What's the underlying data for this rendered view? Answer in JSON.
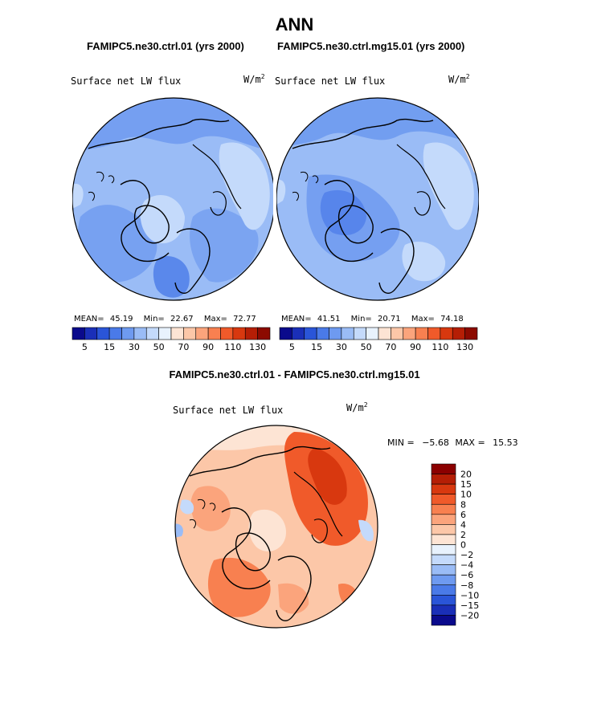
{
  "figure": {
    "title": "ANN",
    "units_base": "W/m",
    "units_exp": "2"
  },
  "panels": [
    {
      "case_title": "FAMIPC5.ne30.ctrl.01 (yrs 2000)",
      "variable": "Surface net LW flux",
      "stats": {
        "mean_label": "MEAN=",
        "mean": "45.19",
        "min_label": "Min=",
        "min": "22.67",
        "max_label": "Max=",
        "max": "72.77"
      }
    },
    {
      "case_title": "FAMIPC5.ne30.ctrl.mg15.01 (yrs 2000)",
      "variable": "Surface net LW flux",
      "stats": {
        "mean_label": "MEAN=",
        "mean": "41.51",
        "min_label": "Min=",
        "min": "20.71",
        "max_label": "Max=",
        "max": "74.18"
      }
    }
  ],
  "colorbar_top": {
    "colors": [
      "#0a0a8c",
      "#1a2fb8",
      "#2a55d8",
      "#4a7ae8",
      "#6e9af0",
      "#9abcf6",
      "#c4dafb",
      "#e8f2fd",
      "#fde4d4",
      "#fcc7a8",
      "#fba47c",
      "#f88050",
      "#f05a2a",
      "#d8380f",
      "#b51e05",
      "#8c0a00"
    ],
    "tick_labels": [
      "5",
      "15",
      "30",
      "50",
      "70",
      "90",
      "110",
      "130"
    ]
  },
  "difference": {
    "title": "FAMIPC5.ne30.ctrl.01 - FAMIPC5.ne30.ctrl.mg15.01",
    "variable": "Surface net LW flux",
    "min_label": "MIN =",
    "min": "−5.68",
    "max_label": "MAX =",
    "max": "15.53"
  },
  "colorbar_diff": {
    "colors": [
      "#8b0000",
      "#b51e05",
      "#d8380f",
      "#f05a2a",
      "#f88050",
      "#fba47c",
      "#fcc7a8",
      "#fde4d4",
      "#e8f2fd",
      "#c4dafb",
      "#9abcf6",
      "#6e9af0",
      "#4a7ae8",
      "#2a55d8",
      "#1a2fb8",
      "#0a0a8c"
    ],
    "tick_labels": [
      "20",
      "15",
      "10",
      "8",
      "6",
      "4",
      "2",
      "0",
      "−2",
      "−4",
      "−6",
      "−8",
      "−10",
      "−15",
      "−20"
    ]
  }
}
